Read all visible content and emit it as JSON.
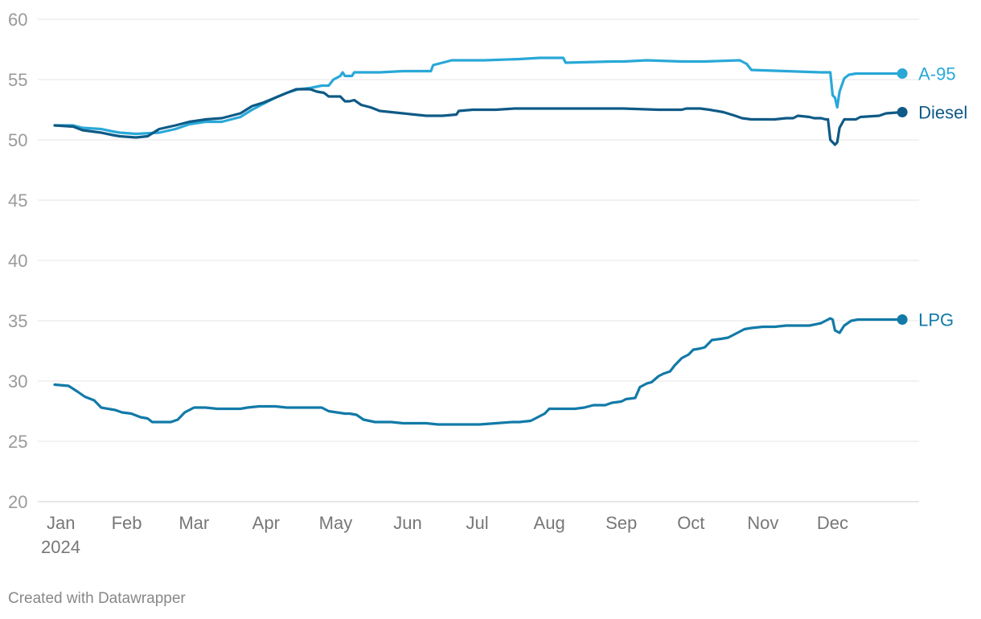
{
  "footer": {
    "credit": "Created with Datawrapper"
  },
  "chart_data": {
    "type": "line",
    "x_unit": "day of year 2024",
    "xlim": [
      0,
      366
    ],
    "ylim": [
      20,
      60
    ],
    "y_ticks": [
      20,
      25,
      30,
      35,
      40,
      45,
      50,
      55,
      60
    ],
    "x_ticks": [
      {
        "value": 0,
        "label": "Jan",
        "sublabel": "2024"
      },
      {
        "value": 31,
        "label": "Feb"
      },
      {
        "value": 60,
        "label": "Mar"
      },
      {
        "value": 91,
        "label": "Apr"
      },
      {
        "value": 121,
        "label": "May"
      },
      {
        "value": 152,
        "label": "Jun"
      },
      {
        "value": 182,
        "label": "Jul"
      },
      {
        "value": 213,
        "label": "Aug"
      },
      {
        "value": 244,
        "label": "Sep"
      },
      {
        "value": 274,
        "label": "Oct"
      },
      {
        "value": 305,
        "label": "Nov"
      },
      {
        "value": 335,
        "label": "Dec"
      }
    ],
    "grid": true,
    "legend": "end-of-line labels",
    "series": [
      {
        "name": "A-95",
        "color": "#29a8d8",
        "points": [
          [
            0,
            51.2
          ],
          [
            8,
            51.2
          ],
          [
            12,
            51.0
          ],
          [
            20,
            50.9
          ],
          [
            25,
            50.7
          ],
          [
            28,
            50.6
          ],
          [
            35,
            50.5
          ],
          [
            45,
            50.6
          ],
          [
            52,
            50.9
          ],
          [
            58,
            51.3
          ],
          [
            65,
            51.5
          ],
          [
            72,
            51.5
          ],
          [
            80,
            51.9
          ],
          [
            85,
            52.5
          ],
          [
            90,
            53.0
          ],
          [
            95,
            53.5
          ],
          [
            100,
            53.9
          ],
          [
            105,
            54.2
          ],
          [
            110,
            54.3
          ],
          [
            115,
            54.5
          ],
          [
            118,
            54.5
          ],
          [
            120,
            55.0
          ],
          [
            123,
            55.3
          ],
          [
            124,
            55.6
          ],
          [
            125,
            55.3
          ],
          [
            128,
            55.3
          ],
          [
            129,
            55.6
          ],
          [
            140,
            55.6
          ],
          [
            150,
            55.7
          ],
          [
            158,
            55.7
          ],
          [
            162,
            55.7
          ],
          [
            163,
            56.2
          ],
          [
            167,
            56.4
          ],
          [
            171,
            56.6
          ],
          [
            185,
            56.6
          ],
          [
            200,
            56.7
          ],
          [
            209,
            56.8
          ],
          [
            219,
            56.8
          ],
          [
            220,
            56.4
          ],
          [
            240,
            56.5
          ],
          [
            245,
            56.5
          ],
          [
            255,
            56.6
          ],
          [
            270,
            56.5
          ],
          [
            280,
            56.5
          ],
          [
            295,
            56.6
          ],
          [
            298,
            56.3
          ],
          [
            300,
            55.8
          ],
          [
            315,
            55.7
          ],
          [
            330,
            55.6
          ],
          [
            334,
            55.6
          ],
          [
            335,
            53.7
          ],
          [
            336,
            53.5
          ],
          [
            337,
            52.7
          ],
          [
            338,
            54.0
          ],
          [
            340,
            55.1
          ],
          [
            342,
            55.4
          ],
          [
            345,
            55.5
          ],
          [
            355,
            55.5
          ],
          [
            365,
            55.5
          ]
        ]
      },
      {
        "name": "Diesel",
        "color": "#0f5a86",
        "points": [
          [
            0,
            51.2
          ],
          [
            8,
            51.1
          ],
          [
            12,
            50.8
          ],
          [
            20,
            50.6
          ],
          [
            25,
            50.4
          ],
          [
            28,
            50.3
          ],
          [
            35,
            50.2
          ],
          [
            40,
            50.3
          ],
          [
            45,
            50.9
          ],
          [
            52,
            51.2
          ],
          [
            58,
            51.5
          ],
          [
            65,
            51.7
          ],
          [
            72,
            51.8
          ],
          [
            80,
            52.2
          ],
          [
            85,
            52.8
          ],
          [
            90,
            53.1
          ],
          [
            95,
            53.5
          ],
          [
            100,
            53.9
          ],
          [
            104,
            54.2
          ],
          [
            110,
            54.2
          ],
          [
            113,
            54.0
          ],
          [
            116,
            53.9
          ],
          [
            118,
            53.6
          ],
          [
            123,
            53.6
          ],
          [
            125,
            53.2
          ],
          [
            127,
            53.2
          ],
          [
            129,
            53.3
          ],
          [
            132,
            52.9
          ],
          [
            136,
            52.7
          ],
          [
            140,
            52.4
          ],
          [
            150,
            52.2
          ],
          [
            160,
            52.0
          ],
          [
            167,
            52.0
          ],
          [
            173,
            52.1
          ],
          [
            174,
            52.4
          ],
          [
            180,
            52.5
          ],
          [
            190,
            52.5
          ],
          [
            198,
            52.6
          ],
          [
            215,
            52.6
          ],
          [
            225,
            52.6
          ],
          [
            245,
            52.6
          ],
          [
            260,
            52.5
          ],
          [
            270,
            52.5
          ],
          [
            272,
            52.6
          ],
          [
            278,
            52.6
          ],
          [
            282,
            52.5
          ],
          [
            288,
            52.3
          ],
          [
            293,
            52.0
          ],
          [
            296,
            51.8
          ],
          [
            300,
            51.7
          ],
          [
            310,
            51.7
          ],
          [
            315,
            51.8
          ],
          [
            318,
            51.8
          ],
          [
            320,
            52.0
          ],
          [
            325,
            51.9
          ],
          [
            327,
            51.8
          ],
          [
            330,
            51.8
          ],
          [
            332,
            51.7
          ],
          [
            333,
            51.7
          ],
          [
            334,
            50.0
          ],
          [
            336,
            49.6
          ],
          [
            337,
            49.8
          ],
          [
            338,
            51.0
          ],
          [
            340,
            51.7
          ],
          [
            345,
            51.7
          ],
          [
            347,
            51.9
          ],
          [
            355,
            52.0
          ],
          [
            358,
            52.2
          ],
          [
            365,
            52.3
          ]
        ]
      },
      {
        "name": "LPG",
        "color": "#127aa8",
        "points": [
          [
            0,
            29.7
          ],
          [
            6,
            29.6
          ],
          [
            10,
            29.1
          ],
          [
            13,
            28.7
          ],
          [
            17,
            28.4
          ],
          [
            20,
            27.8
          ],
          [
            26,
            27.6
          ],
          [
            29,
            27.4
          ],
          [
            33,
            27.3
          ],
          [
            37,
            27.0
          ],
          [
            40,
            26.9
          ],
          [
            42,
            26.6
          ],
          [
            46,
            26.6
          ],
          [
            50,
            26.6
          ],
          [
            53,
            26.8
          ],
          [
            56,
            27.4
          ],
          [
            60,
            27.8
          ],
          [
            65,
            27.8
          ],
          [
            70,
            27.7
          ],
          [
            80,
            27.7
          ],
          [
            83,
            27.8
          ],
          [
            88,
            27.9
          ],
          [
            95,
            27.9
          ],
          [
            100,
            27.8
          ],
          [
            115,
            27.8
          ],
          [
            118,
            27.5
          ],
          [
            125,
            27.3
          ],
          [
            127,
            27.3
          ],
          [
            130,
            27.2
          ],
          [
            133,
            26.8
          ],
          [
            138,
            26.6
          ],
          [
            145,
            26.6
          ],
          [
            150,
            26.5
          ],
          [
            160,
            26.5
          ],
          [
            165,
            26.4
          ],
          [
            175,
            26.4
          ],
          [
            183,
            26.4
          ],
          [
            190,
            26.5
          ],
          [
            197,
            26.6
          ],
          [
            200,
            26.6
          ],
          [
            205,
            26.7
          ],
          [
            208,
            27.0
          ],
          [
            211,
            27.3
          ],
          [
            213,
            27.7
          ],
          [
            218,
            27.7
          ],
          [
            224,
            27.7
          ],
          [
            228,
            27.8
          ],
          [
            232,
            28.0
          ],
          [
            237,
            28.0
          ],
          [
            240,
            28.2
          ],
          [
            244,
            28.3
          ],
          [
            246,
            28.5
          ],
          [
            250,
            28.6
          ],
          [
            252,
            29.5
          ],
          [
            255,
            29.8
          ],
          [
            257,
            29.9
          ],
          [
            260,
            30.4
          ],
          [
            262,
            30.6
          ],
          [
            265,
            30.8
          ],
          [
            267,
            31.3
          ],
          [
            270,
            31.9
          ],
          [
            273,
            32.2
          ],
          [
            275,
            32.6
          ],
          [
            278,
            32.7
          ],
          [
            280,
            32.8
          ],
          [
            283,
            33.4
          ],
          [
            287,
            33.5
          ],
          [
            290,
            33.6
          ],
          [
            293,
            33.9
          ],
          [
            297,
            34.3
          ],
          [
            300,
            34.4
          ],
          [
            305,
            34.5
          ],
          [
            310,
            34.5
          ],
          [
            315,
            34.6
          ],
          [
            325,
            34.6
          ],
          [
            330,
            34.8
          ],
          [
            332,
            35.0
          ],
          [
            334,
            35.2
          ],
          [
            335,
            35.1
          ],
          [
            336,
            34.2
          ],
          [
            338,
            34.0
          ],
          [
            340,
            34.6
          ],
          [
            343,
            35.0
          ],
          [
            346,
            35.1
          ],
          [
            355,
            35.1
          ],
          [
            365,
            35.1
          ]
        ]
      }
    ]
  }
}
